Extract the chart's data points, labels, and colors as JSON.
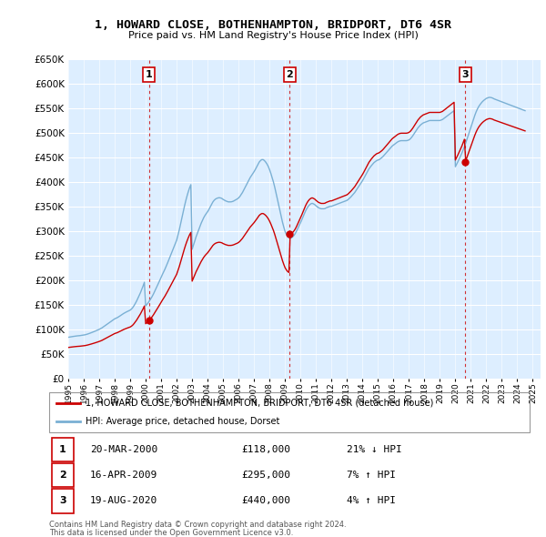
{
  "title": "1, HOWARD CLOSE, BOTHENHAMPTON, BRIDPORT, DT6 4SR",
  "subtitle": "Price paid vs. HM Land Registry's House Price Index (HPI)",
  "ylim": [
    0,
    650000
  ],
  "yticks": [
    0,
    50000,
    100000,
    150000,
    200000,
    250000,
    300000,
    350000,
    400000,
    450000,
    500000,
    550000,
    600000,
    650000
  ],
  "xlim_start": 1995.0,
  "xlim_end": 2025.5,
  "bg_color": "#ddeeff",
  "grid_color": "#ffffff",
  "red_line_color": "#cc0000",
  "blue_line_color": "#7ab0d4",
  "legend_label_red": "1, HOWARD CLOSE, BOTHENHAMPTON, BRIDPORT, DT6 4SR (detached house)",
  "legend_label_blue": "HPI: Average price, detached house, Dorset",
  "transactions": [
    {
      "num": 1,
      "date": "20-MAR-2000",
      "price": 118000,
      "pct": "21%",
      "dir": "↓",
      "x": 2000.21
    },
    {
      "num": 2,
      "date": "16-APR-2009",
      "price": 295000,
      "pct": "7%",
      "dir": "↑",
      "x": 2009.29
    },
    {
      "num": 3,
      "date": "19-AUG-2020",
      "price": 440000,
      "pct": "4%",
      "dir": "↑",
      "x": 2020.63
    }
  ],
  "footnote1": "Contains HM Land Registry data © Crown copyright and database right 2024.",
  "footnote2": "This data is licensed under the Open Government Licence v3.0.",
  "hpi_x": [
    1995.0,
    1995.083,
    1995.167,
    1995.25,
    1995.333,
    1995.417,
    1995.5,
    1995.583,
    1995.667,
    1995.75,
    1995.833,
    1995.917,
    1996.0,
    1996.083,
    1996.167,
    1996.25,
    1996.333,
    1996.417,
    1996.5,
    1996.583,
    1996.667,
    1996.75,
    1996.833,
    1996.917,
    1997.0,
    1997.083,
    1997.167,
    1997.25,
    1997.333,
    1997.417,
    1997.5,
    1997.583,
    1997.667,
    1997.75,
    1997.833,
    1997.917,
    1998.0,
    1998.083,
    1998.167,
    1998.25,
    1998.333,
    1998.417,
    1998.5,
    1998.583,
    1998.667,
    1998.75,
    1998.833,
    1998.917,
    1999.0,
    1999.083,
    1999.167,
    1999.25,
    1999.333,
    1999.417,
    1999.5,
    1999.583,
    1999.667,
    1999.75,
    1999.833,
    1999.917,
    2000.0,
    2000.083,
    2000.167,
    2000.25,
    2000.333,
    2000.417,
    2000.5,
    2000.583,
    2000.667,
    2000.75,
    2000.833,
    2000.917,
    2001.0,
    2001.083,
    2001.167,
    2001.25,
    2001.333,
    2001.417,
    2001.5,
    2001.583,
    2001.667,
    2001.75,
    2001.833,
    2001.917,
    2002.0,
    2002.083,
    2002.167,
    2002.25,
    2002.333,
    2002.417,
    2002.5,
    2002.583,
    2002.667,
    2002.75,
    2002.833,
    2002.917,
    2003.0,
    2003.083,
    2003.167,
    2003.25,
    2003.333,
    2003.417,
    2003.5,
    2003.583,
    2003.667,
    2003.75,
    2003.833,
    2003.917,
    2004.0,
    2004.083,
    2004.167,
    2004.25,
    2004.333,
    2004.417,
    2004.5,
    2004.583,
    2004.667,
    2004.75,
    2004.833,
    2004.917,
    2005.0,
    2005.083,
    2005.167,
    2005.25,
    2005.333,
    2005.417,
    2005.5,
    2005.583,
    2005.667,
    2005.75,
    2005.833,
    2005.917,
    2006.0,
    2006.083,
    2006.167,
    2006.25,
    2006.333,
    2006.417,
    2006.5,
    2006.583,
    2006.667,
    2006.75,
    2006.833,
    2006.917,
    2007.0,
    2007.083,
    2007.167,
    2007.25,
    2007.333,
    2007.417,
    2007.5,
    2007.583,
    2007.667,
    2007.75,
    2007.833,
    2007.917,
    2008.0,
    2008.083,
    2008.167,
    2008.25,
    2008.333,
    2008.417,
    2008.5,
    2008.583,
    2008.667,
    2008.75,
    2008.833,
    2008.917,
    2009.0,
    2009.083,
    2009.167,
    2009.25,
    2009.333,
    2009.417,
    2009.5,
    2009.583,
    2009.667,
    2009.75,
    2009.833,
    2009.917,
    2010.0,
    2010.083,
    2010.167,
    2010.25,
    2010.333,
    2010.417,
    2010.5,
    2010.583,
    2010.667,
    2010.75,
    2010.833,
    2010.917,
    2011.0,
    2011.083,
    2011.167,
    2011.25,
    2011.333,
    2011.417,
    2011.5,
    2011.583,
    2011.667,
    2011.75,
    2011.833,
    2011.917,
    2012.0,
    2012.083,
    2012.167,
    2012.25,
    2012.333,
    2012.417,
    2012.5,
    2012.583,
    2012.667,
    2012.75,
    2012.833,
    2012.917,
    2013.0,
    2013.083,
    2013.167,
    2013.25,
    2013.333,
    2013.417,
    2013.5,
    2013.583,
    2013.667,
    2013.75,
    2013.833,
    2013.917,
    2014.0,
    2014.083,
    2014.167,
    2014.25,
    2014.333,
    2014.417,
    2014.5,
    2014.583,
    2014.667,
    2014.75,
    2014.833,
    2014.917,
    2015.0,
    2015.083,
    2015.167,
    2015.25,
    2015.333,
    2015.417,
    2015.5,
    2015.583,
    2015.667,
    2015.75,
    2015.833,
    2015.917,
    2016.0,
    2016.083,
    2016.167,
    2016.25,
    2016.333,
    2016.417,
    2016.5,
    2016.583,
    2016.667,
    2016.75,
    2016.833,
    2016.917,
    2017.0,
    2017.083,
    2017.167,
    2017.25,
    2017.333,
    2017.417,
    2017.5,
    2017.583,
    2017.667,
    2017.75,
    2017.833,
    2017.917,
    2018.0,
    2018.083,
    2018.167,
    2018.25,
    2018.333,
    2018.417,
    2018.5,
    2018.583,
    2018.667,
    2018.75,
    2018.833,
    2018.917,
    2019.0,
    2019.083,
    2019.167,
    2019.25,
    2019.333,
    2019.417,
    2019.5,
    2019.583,
    2019.667,
    2019.75,
    2019.833,
    2019.917,
    2020.0,
    2020.083,
    2020.167,
    2020.25,
    2020.333,
    2020.417,
    2020.5,
    2020.583,
    2020.667,
    2020.75,
    2020.833,
    2020.917,
    2021.0,
    2021.083,
    2021.167,
    2021.25,
    2021.333,
    2021.417,
    2021.5,
    2021.583,
    2021.667,
    2021.75,
    2021.833,
    2021.917,
    2022.0,
    2022.083,
    2022.167,
    2022.25,
    2022.333,
    2022.417,
    2022.5,
    2022.583,
    2022.667,
    2022.75,
    2022.833,
    2022.917,
    2023.0,
    2023.083,
    2023.167,
    2023.25,
    2023.333,
    2023.417,
    2023.5,
    2023.583,
    2023.667,
    2023.75,
    2023.833,
    2023.917,
    2024.0,
    2024.083,
    2024.167,
    2024.25,
    2024.333,
    2024.417,
    2024.5
  ],
  "hpi_y": [
    84000,
    84500,
    85000,
    85500,
    85800,
    86200,
    86500,
    86900,
    87100,
    87400,
    87800,
    88200,
    88600,
    89100,
    89800,
    90600,
    91500,
    92500,
    93500,
    94500,
    95600,
    96700,
    97800,
    99000,
    100200,
    101500,
    103000,
    104800,
    106600,
    108500,
    110400,
    112300,
    114200,
    116100,
    118000,
    119900,
    121600,
    122800,
    124000,
    125600,
    127300,
    129100,
    130900,
    132600,
    134100,
    135500,
    136800,
    138000,
    139300,
    141500,
    144500,
    148500,
    153000,
    158000,
    163500,
    169000,
    175000,
    181500,
    188500,
    196000,
    148000,
    151000,
    154500,
    158500,
    162500,
    167000,
    172000,
    177500,
    183000,
    189000,
    194500,
    200500,
    206500,
    212000,
    217500,
    223000,
    229000,
    235500,
    242000,
    248500,
    255000,
    261500,
    268000,
    274500,
    281500,
    291500,
    302000,
    314000,
    326000,
    338500,
    350000,
    361000,
    371000,
    380000,
    388000,
    394500,
    263000,
    271000,
    279500,
    288000,
    295000,
    302500,
    309500,
    316000,
    322000,
    327500,
    332000,
    336000,
    339500,
    344000,
    349000,
    354000,
    359000,
    362500,
    365000,
    366500,
    367500,
    368000,
    367500,
    366500,
    364500,
    363000,
    361500,
    360500,
    359500,
    359500,
    359500,
    360000,
    361000,
    362500,
    364000,
    365500,
    367500,
    370500,
    374500,
    378500,
    383500,
    388500,
    394000,
    399000,
    404000,
    409000,
    413000,
    417000,
    421000,
    425500,
    430500,
    435500,
    440500,
    443500,
    445500,
    445500,
    443500,
    440500,
    436500,
    431500,
    425000,
    417500,
    409000,
    400000,
    389500,
    378000,
    366000,
    354000,
    341500,
    329500,
    318500,
    308500,
    299500,
    293500,
    289000,
    286500,
    285500,
    286500,
    288500,
    291500,
    295500,
    300500,
    306000,
    311500,
    317000,
    323000,
    329500,
    335500,
    341500,
    346500,
    350500,
    353500,
    355500,
    356500,
    355500,
    354000,
    351500,
    349500,
    347500,
    346500,
    345500,
    345500,
    345500,
    346000,
    347500,
    348500,
    349500,
    350500,
    350500,
    351500,
    352500,
    353500,
    354500,
    355500,
    356500,
    357500,
    358500,
    359500,
    360500,
    361500,
    362500,
    364500,
    367000,
    369500,
    372500,
    375500,
    378500,
    382500,
    386500,
    390500,
    394500,
    398500,
    402500,
    407000,
    412000,
    417000,
    422000,
    426500,
    430000,
    433500,
    436500,
    439500,
    441500,
    443500,
    444500,
    445500,
    447500,
    449500,
    452000,
    455000,
    458000,
    461000,
    464000,
    467000,
    470000,
    473000,
    475000,
    477000,
    479000,
    481000,
    482500,
    483500,
    484000,
    484000,
    484000,
    484000,
    484000,
    484500,
    485500,
    487500,
    490500,
    494000,
    498000,
    502000,
    506000,
    510000,
    513000,
    516000,
    518000,
    520000,
    521000,
    522000,
    523000,
    524000,
    525000,
    525000,
    525000,
    525000,
    525000,
    525000,
    525000,
    525000,
    525000,
    526000,
    527000,
    529000,
    531000,
    533000,
    535000,
    537000,
    539000,
    541000,
    543000,
    545000,
    431000,
    436000,
    441500,
    447000,
    452500,
    458500,
    465000,
    472000,
    479000,
    487000,
    495000,
    503000,
    511000,
    519000,
    527000,
    535000,
    542000,
    548000,
    553000,
    557000,
    560500,
    563500,
    566000,
    568000,
    570000,
    571000,
    572000,
    572000,
    571500,
    570500,
    569000,
    568000,
    567000,
    566000,
    565000,
    564000,
    563000,
    562000,
    561000,
    560000,
    559000,
    558000,
    557000,
    556000,
    555000,
    554000,
    553000,
    552000,
    551000,
    550000,
    549000,
    548000,
    547000,
    546000,
    545000
  ]
}
